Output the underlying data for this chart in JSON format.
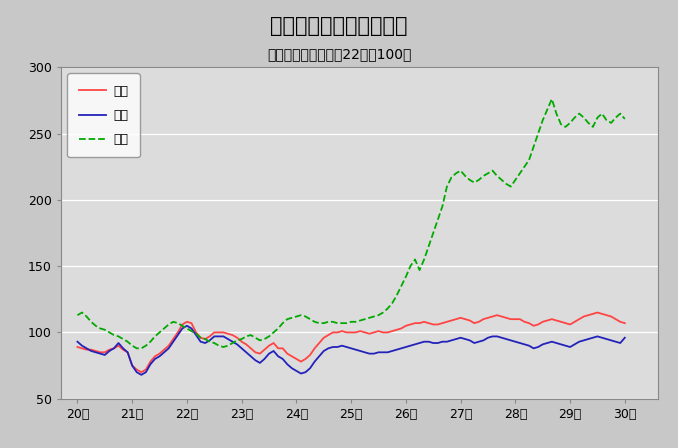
{
  "title": "鳥取県鉱工業指数の推移",
  "subtitle": "（季節調整済、平成22年＝100）",
  "title_fontsize": 15,
  "subtitle_fontsize": 10,
  "ylim": [
    50,
    300
  ],
  "yticks": [
    50,
    100,
    150,
    200,
    250,
    300
  ],
  "xtick_labels": [
    "20年",
    "21年",
    "22年",
    "23年",
    "24年",
    "25年",
    "26年",
    "27年",
    "28年",
    "29年",
    "30年"
  ],
  "outer_bg": "#c8c8c8",
  "plot_bg_color": "#dcdcdc",
  "legend_labels": [
    "生産",
    "出荷",
    "在庫"
  ],
  "legend_colors": [
    "#ff4444",
    "#2222bb",
    "#00aa00"
  ],
  "production": [
    89,
    88,
    87,
    87,
    86,
    85,
    85,
    87,
    88,
    90,
    87,
    85,
    75,
    72,
    70,
    72,
    78,
    82,
    84,
    87,
    90,
    95,
    100,
    106,
    108,
    107,
    100,
    96,
    95,
    97,
    100,
    100,
    100,
    99,
    98,
    96,
    93,
    91,
    88,
    85,
    84,
    87,
    90,
    92,
    88,
    88,
    84,
    82,
    80,
    78,
    80,
    83,
    88,
    92,
    96,
    98,
    100,
    100,
    101,
    100,
    100,
    100,
    101,
    100,
    99,
    100,
    101,
    100,
    100,
    101,
    102,
    103,
    105,
    106,
    107,
    107,
    108,
    107,
    106,
    106,
    107,
    108,
    109,
    110,
    111,
    110,
    109,
    107,
    108,
    110,
    111,
    112,
    113,
    112,
    111,
    110,
    110,
    110,
    108,
    107,
    105,
    106,
    108,
    109,
    110,
    109,
    108,
    107,
    106,
    108,
    110,
    112,
    113,
    114,
    115,
    114,
    113,
    112,
    110,
    108,
    107
  ],
  "shipment": [
    93,
    90,
    88,
    86,
    85,
    84,
    83,
    86,
    88,
    92,
    88,
    85,
    75,
    70,
    68,
    70,
    76,
    80,
    82,
    85,
    88,
    93,
    98,
    103,
    105,
    103,
    98,
    93,
    92,
    94,
    97,
    97,
    97,
    95,
    93,
    91,
    88,
    85,
    82,
    79,
    77,
    80,
    84,
    86,
    82,
    80,
    76,
    73,
    71,
    69,
    70,
    73,
    78,
    82,
    86,
    88,
    89,
    89,
    90,
    89,
    88,
    87,
    86,
    85,
    84,
    84,
    85,
    85,
    85,
    86,
    87,
    88,
    89,
    90,
    91,
    92,
    93,
    93,
    92,
    92,
    93,
    93,
    94,
    95,
    96,
    95,
    94,
    92,
    93,
    94,
    96,
    97,
    97,
    96,
    95,
    94,
    93,
    92,
    91,
    90,
    88,
    89,
    91,
    92,
    93,
    92,
    91,
    90,
    89,
    91,
    93,
    94,
    95,
    96,
    97,
    96,
    95,
    94,
    93,
    92,
    96
  ],
  "inventory": [
    113,
    115,
    112,
    108,
    105,
    103,
    102,
    100,
    98,
    97,
    95,
    93,
    90,
    88,
    88,
    90,
    93,
    97,
    100,
    103,
    106,
    108,
    107,
    105,
    103,
    101,
    99,
    96,
    95,
    93,
    92,
    90,
    89,
    90,
    92,
    94,
    95,
    97,
    98,
    96,
    94,
    95,
    97,
    100,
    103,
    107,
    110,
    111,
    112,
    113,
    112,
    110,
    108,
    107,
    107,
    108,
    108,
    107,
    107,
    107,
    108,
    108,
    109,
    110,
    111,
    112,
    113,
    115,
    118,
    122,
    128,
    135,
    142,
    150,
    155,
    147,
    155,
    165,
    175,
    185,
    195,
    210,
    217,
    220,
    222,
    218,
    215,
    213,
    215,
    218,
    220,
    222,
    218,
    215,
    212,
    210,
    215,
    220,
    225,
    230,
    240,
    250,
    260,
    268,
    276,
    265,
    257,
    255,
    258,
    262,
    265,
    262,
    258,
    255,
    262,
    265,
    260,
    258,
    262,
    265,
    261
  ]
}
